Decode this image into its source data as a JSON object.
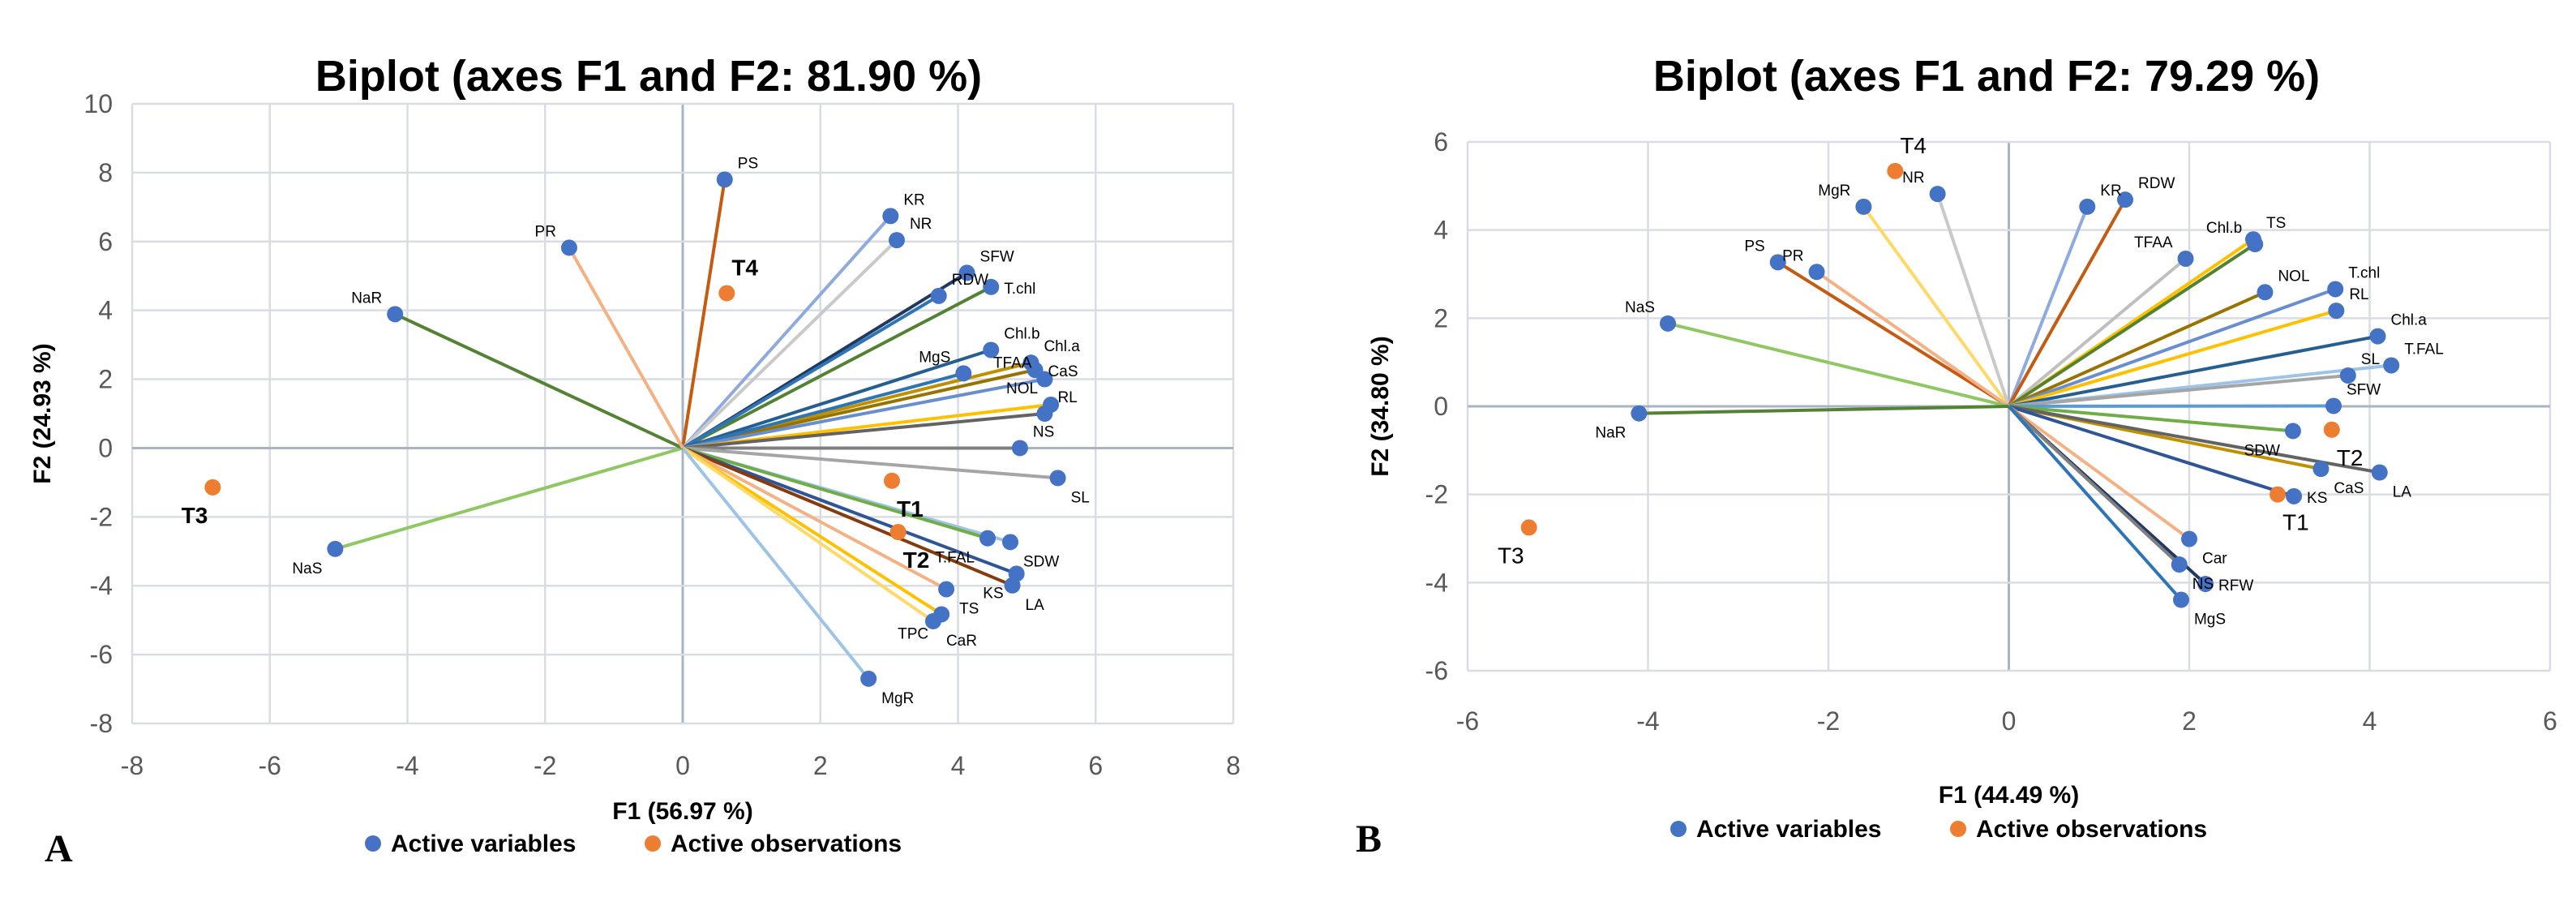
{
  "colors": {
    "variable": "#4472c4",
    "observation": "#ed7d31",
    "grid": "#d9dde3",
    "axis": "#a8b3c6"
  },
  "chart_data": [
    {
      "type": "scatter",
      "panel_label": "A",
      "title": "Biplot (axes F1 and F2: 81.90 %)",
      "xlabel": "F1 (56.97 %)",
      "ylabel": "F2 (24.93 %)",
      "xlim": [
        -8,
        8
      ],
      "ylim": [
        -8,
        10
      ],
      "xticks": [
        -8,
        -6,
        -4,
        -2,
        0,
        2,
        4,
        6,
        8
      ],
      "yticks": [
        -8,
        -6,
        -4,
        -2,
        0,
        2,
        4,
        6,
        8,
        10
      ],
      "legend": [
        "Active variables",
        "Active observations"
      ],
      "legend_position": "bottom",
      "variables": [
        {
          "name": "PS",
          "x": 0.61,
          "y": 7.8,
          "color": "#c55a11"
        },
        {
          "name": "KR",
          "x": 3.02,
          "y": 6.74,
          "color": "#8faadc"
        },
        {
          "name": "NR",
          "x": 3.11,
          "y": 6.04,
          "color": "#c9c9c9"
        },
        {
          "name": "SFW",
          "x": 4.13,
          "y": 5.09,
          "color": "#1f3864"
        },
        {
          "name": "T.chl",
          "x": 4.48,
          "y": 4.68,
          "color": "#548235"
        },
        {
          "name": "RDW",
          "x": 3.72,
          "y": 4.42,
          "color": "#2e75b6"
        },
        {
          "name": "Chl.b",
          "x": 4.48,
          "y": 2.85,
          "color": "#255e91"
        },
        {
          "name": "Chl.a",
          "x": 5.06,
          "y": 2.48,
          "color": "#bf9000"
        },
        {
          "name": "CaS",
          "x": 5.12,
          "y": 2.27,
          "color": "#997300"
        },
        {
          "name": "MgS",
          "x": 4.08,
          "y": 2.17,
          "color": "#2e75b6"
        },
        {
          "name": "TFAA",
          "x": 5.26,
          "y": 2.0,
          "color": "#698ed0"
        },
        {
          "name": "NOL",
          "x": 5.35,
          "y": 1.26,
          "color": "#ffc000"
        },
        {
          "name": "RL",
          "x": 5.26,
          "y": 1.0,
          "color": "#636363"
        },
        {
          "name": "NS",
          "x": 4.9,
          "y": 0.0,
          "color": "#7f7f7f"
        },
        {
          "name": "SL",
          "x": 5.45,
          "y": -0.87,
          "color": "#a5a5a5"
        },
        {
          "name": "SDW",
          "x": 4.76,
          "y": -2.73,
          "color": "#9dc3e6"
        },
        {
          "name": "T.FAL",
          "x": 4.43,
          "y": -2.62,
          "color": "#70ad47"
        },
        {
          "name": "KS",
          "x": 4.85,
          "y": -3.65,
          "color": "#2f5597"
        },
        {
          "name": "LA",
          "x": 4.79,
          "y": -3.99,
          "color": "#843c0c"
        },
        {
          "name": "TS",
          "x": 3.83,
          "y": -4.1,
          "color": "#f4b183"
        },
        {
          "name": "TPC",
          "x": 3.76,
          "y": -4.83,
          "color": "#ffc000"
        },
        {
          "name": "CaR",
          "x": 3.64,
          "y": -5.03,
          "color": "#ffd966"
        },
        {
          "name": "MgR",
          "x": 2.7,
          "y": -6.7,
          "color": "#9dc3e6"
        },
        {
          "name": "NaS",
          "x": -5.05,
          "y": -2.93,
          "color": "#8fc863"
        },
        {
          "name": "NaR",
          "x": -4.18,
          "y": 3.89,
          "color": "#548235"
        },
        {
          "name": "PR",
          "x": -1.65,
          "y": 5.82,
          "color": "#f4b183"
        }
      ],
      "observations": [
        {
          "name": "T4",
          "x": 0.64,
          "y": 4.5
        },
        {
          "name": "T1",
          "x": 3.04,
          "y": -0.95
        },
        {
          "name": "T2",
          "x": 3.13,
          "y": -2.44
        },
        {
          "name": "T3",
          "x": -6.83,
          "y": -1.14
        }
      ]
    },
    {
      "type": "scatter",
      "panel_label": "B",
      "title": "Biplot (axes F1 and F2: 79.29 %)",
      "xlabel": "F1 (44.49 %)",
      "ylabel": "F2 (34.80 %)",
      "xlim": [
        -6,
        6
      ],
      "ylim": [
        -6,
        6
      ],
      "xticks": [
        -6,
        -4,
        -2,
        0,
        2,
        4,
        6
      ],
      "yticks": [
        -6,
        -4,
        -2,
        0,
        2,
        4,
        6
      ],
      "legend": [
        "Active variables",
        "Active observations"
      ],
      "legend_position": "bottom",
      "variables": [
        {
          "name": "MgR",
          "x": -1.61,
          "y": 4.53,
          "color": "#ffd966"
        },
        {
          "name": "NR",
          "x": -0.79,
          "y": 4.82,
          "color": "#c9c9c9"
        },
        {
          "name": "KR",
          "x": 0.87,
          "y": 4.53,
          "color": "#8faadc"
        },
        {
          "name": "RDW",
          "x": 1.29,
          "y": 4.69,
          "color": "#c55a11"
        },
        {
          "name": "TFAA",
          "x": 1.96,
          "y": 3.35,
          "color": "#bfbfbf"
        },
        {
          "name": "TS",
          "x": 2.71,
          "y": 3.79,
          "color": "#ffc000"
        },
        {
          "name": "Chl.b",
          "x": 2.73,
          "y": 3.68,
          "color": "#548235"
        },
        {
          "name": "NOL",
          "x": 2.84,
          "y": 2.59,
          "color": "#997300"
        },
        {
          "name": "T.chl",
          "x": 3.62,
          "y": 2.66,
          "color": "#698ed0"
        },
        {
          "name": "RL",
          "x": 3.63,
          "y": 2.17,
          "color": "#ffc000"
        },
        {
          "name": "Chl.a",
          "x": 4.09,
          "y": 1.59,
          "color": "#255e91"
        },
        {
          "name": "T.FAL",
          "x": 4.24,
          "y": 0.93,
          "color": "#9dc3e6"
        },
        {
          "name": "SL",
          "x": 3.76,
          "y": 0.7,
          "color": "#a5a5a5"
        },
        {
          "name": "SFW",
          "x": 3.6,
          "y": 0.01,
          "color": "#5b9bd5"
        },
        {
          "name": "SDW",
          "x": 3.15,
          "y": -0.56,
          "color": "#70ad47"
        },
        {
          "name": "CaS",
          "x": 3.46,
          "y": -1.42,
          "color": "#bf9000"
        },
        {
          "name": "LA",
          "x": 4.11,
          "y": -1.5,
          "color": "#636363"
        },
        {
          "name": "KS",
          "x": 3.16,
          "y": -2.04,
          "color": "#2f5597"
        },
        {
          "name": "Car",
          "x": 2.0,
          "y": -3.01,
          "color": "#f4b183"
        },
        {
          "name": "RFW",
          "x": 2.18,
          "y": -4.03,
          "color": "#1f3864"
        },
        {
          "name": "NS",
          "x": 1.89,
          "y": -3.59,
          "color": "#7f7f7f"
        },
        {
          "name": "MgS",
          "x": 1.91,
          "y": -4.39,
          "color": "#2e75b6"
        },
        {
          "name": "PS",
          "x": -2.56,
          "y": 3.27,
          "color": "#c55a11"
        },
        {
          "name": "PR",
          "x": -2.13,
          "y": 3.05,
          "color": "#f4b183"
        },
        {
          "name": "NaS",
          "x": -3.78,
          "y": 1.88,
          "color": "#8fc863"
        },
        {
          "name": "NaR",
          "x": -4.1,
          "y": -0.16,
          "color": "#548235"
        }
      ],
      "observations": [
        {
          "name": "T4",
          "x": -1.26,
          "y": 5.34
        },
        {
          "name": "T2",
          "x": 3.58,
          "y": -0.53
        },
        {
          "name": "T1",
          "x": 2.98,
          "y": -2.0
        },
        {
          "name": "T3",
          "x": -5.32,
          "y": -2.75
        }
      ]
    }
  ]
}
